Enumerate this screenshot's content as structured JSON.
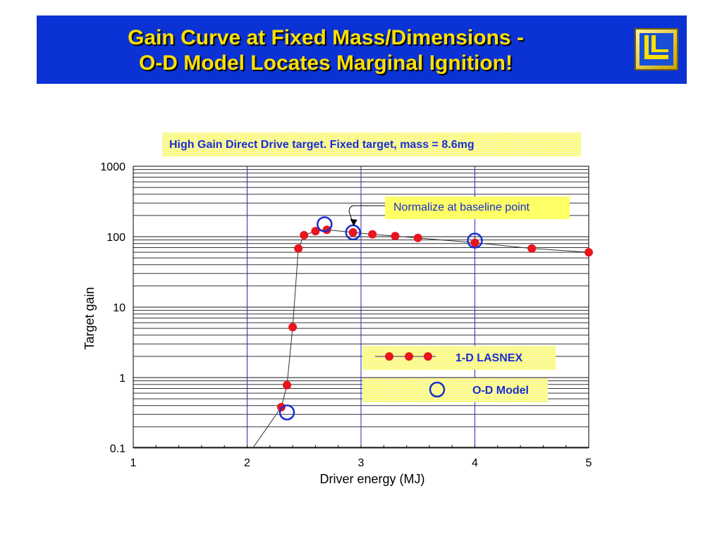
{
  "slide": {
    "title_line1": "Gain Curve at Fixed Mass/Dimensions -",
    "title_line2": "O-D Model Locates Marginal Ignition!",
    "logo_icon": "llnl-logo-icon",
    "banner_color": "#0a32d4",
    "title_color": "#ffe000"
  },
  "subtitle": "High Gain Direct Drive target.  Fixed target, mass = 8.6mg",
  "callout": "Normalize at baseline point",
  "chart_data": {
    "type": "line",
    "xlabel": "Driver energy (MJ)",
    "ylabel": "Target gain",
    "xlim": [
      1,
      5
    ],
    "ylim": [
      0.1,
      1000
    ],
    "yscale": "log",
    "x_ticks": [
      "1",
      "2",
      "3",
      "4",
      "5"
    ],
    "y_ticks": [
      "0.1",
      "1",
      "10",
      "100",
      "1000"
    ],
    "grid": true,
    "series": [
      {
        "name": "1-D LASNEX",
        "style": "red-dots-with-line",
        "color": "#e8141e",
        "x": [
          2.3,
          2.35,
          2.4,
          2.45,
          2.5,
          2.6,
          2.7,
          2.93,
          3.1,
          3.3,
          3.5,
          4.0,
          4.5,
          5.0
        ],
        "y": [
          0.38,
          0.78,
          5.2,
          68,
          105,
          120,
          125,
          115,
          108,
          102,
          96,
          82,
          68,
          60
        ]
      },
      {
        "name": "O-D Model",
        "style": "open-blue-circles",
        "color": "#1a2ecc",
        "x": [
          2.35,
          2.68,
          2.93,
          4.0
        ],
        "y": [
          0.32,
          150,
          115,
          88
        ]
      }
    ],
    "extrapolation_line": {
      "x": [
        2.05,
        2.3
      ],
      "y": [
        0.1,
        0.38
      ]
    },
    "annotation": {
      "text_ref": "callout",
      "points_to": {
        "x": 2.93,
        "y": 115
      }
    },
    "legend_placement": "lower-right"
  }
}
